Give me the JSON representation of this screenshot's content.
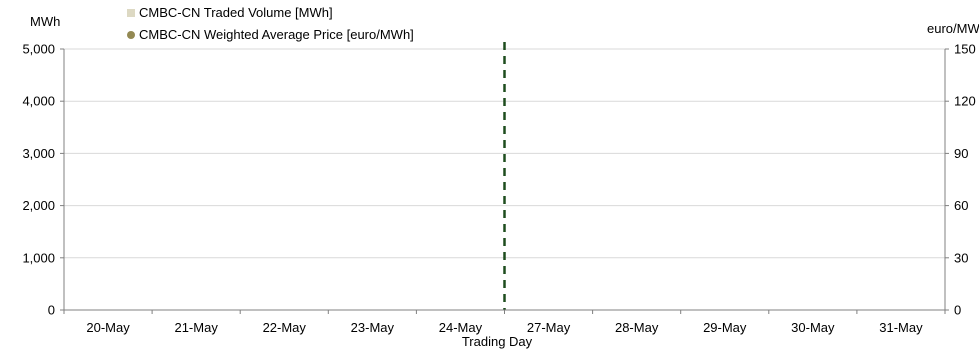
{
  "chart_data": {
    "type": "bar",
    "categories": [
      "20-May",
      "21-May",
      "22-May",
      "23-May",
      "24-May",
      "27-May",
      "28-May",
      "29-May",
      "30-May",
      "31-May"
    ],
    "series": [
      {
        "name": "CMBC-CN Traded Volume [MWh]",
        "axis": "left",
        "kind": "bar",
        "color": "#ddd9c3",
        "values": [
          0,
          0,
          0,
          0,
          0,
          0,
          0,
          0,
          0,
          0
        ]
      },
      {
        "name": "CMBC-CN Weighted Average Price [euro/MWh]",
        "axis": "right",
        "kind": "marker",
        "color": "#938953",
        "values": [
          null,
          null,
          null,
          null,
          null,
          null,
          null,
          null,
          null,
          null
        ]
      }
    ],
    "xlabel": "Trading Day",
    "y_left": {
      "unit": "MWh",
      "min": 0,
      "max": 5000,
      "ticks": [
        0,
        1000,
        2000,
        3000,
        4000,
        5000
      ],
      "tick_labels": [
        "0",
        "1,000",
        "2,000",
        "3,000",
        "4,000",
        "5,000"
      ]
    },
    "y_right": {
      "unit": "euro/MWh",
      "min": 0,
      "max": 150,
      "ticks": [
        0,
        30,
        60,
        90,
        120,
        150
      ],
      "tick_labels": [
        "0",
        "30",
        "60",
        "90",
        "120",
        "150"
      ]
    },
    "grid": true,
    "legend_position": "top-left",
    "divider": {
      "between": [
        "24-May",
        "27-May"
      ],
      "style": "dashed",
      "color": "#1e4d1e"
    }
  }
}
